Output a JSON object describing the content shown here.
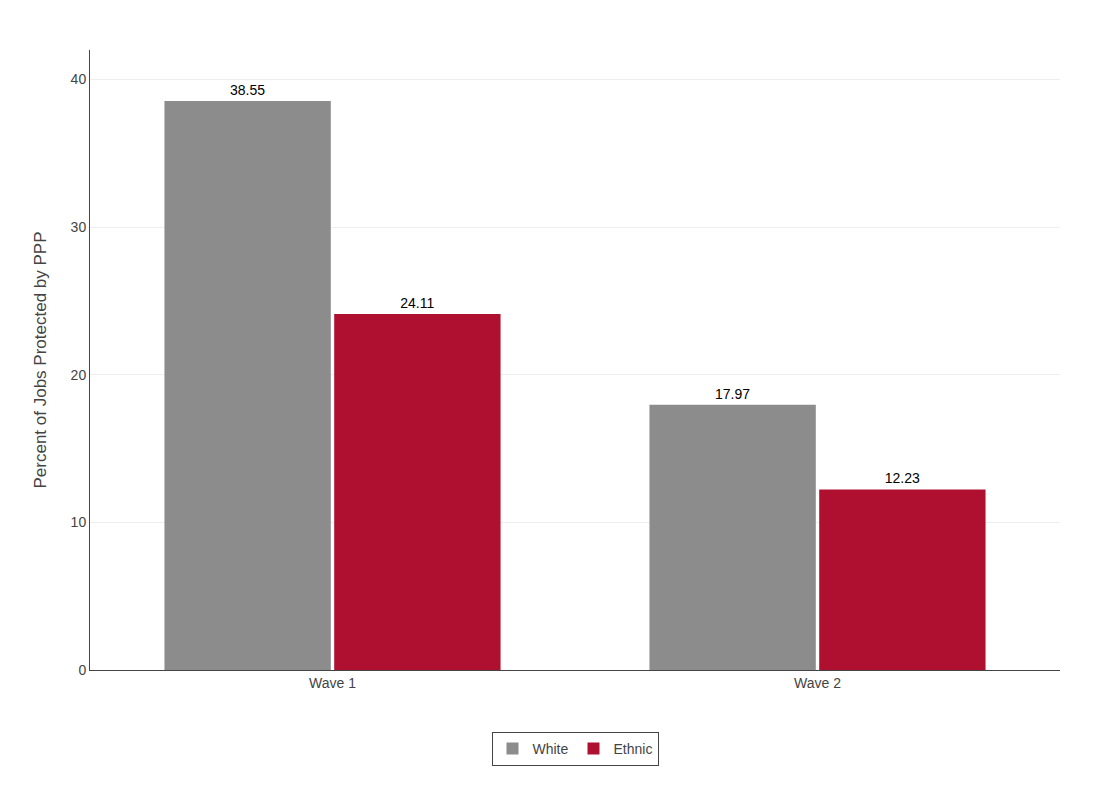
{
  "chart_data": {
    "type": "bar",
    "categories": [
      "Wave 1",
      "Wave 2"
    ],
    "series": [
      {
        "name": "White",
        "color": "#8c8c8c",
        "values": [
          38.55,
          17.97
        ]
      },
      {
        "name": "Ethnic",
        "color": "#b01030",
        "values": [
          24.11,
          12.23
        ]
      }
    ],
    "ylabel": "Percent of Jobs Protected by PPP",
    "ylim": [
      0,
      42
    ],
    "yticks": [
      0,
      10,
      20,
      30,
      40
    ],
    "grid": true,
    "legend": "bottom",
    "data_labels": true
  }
}
